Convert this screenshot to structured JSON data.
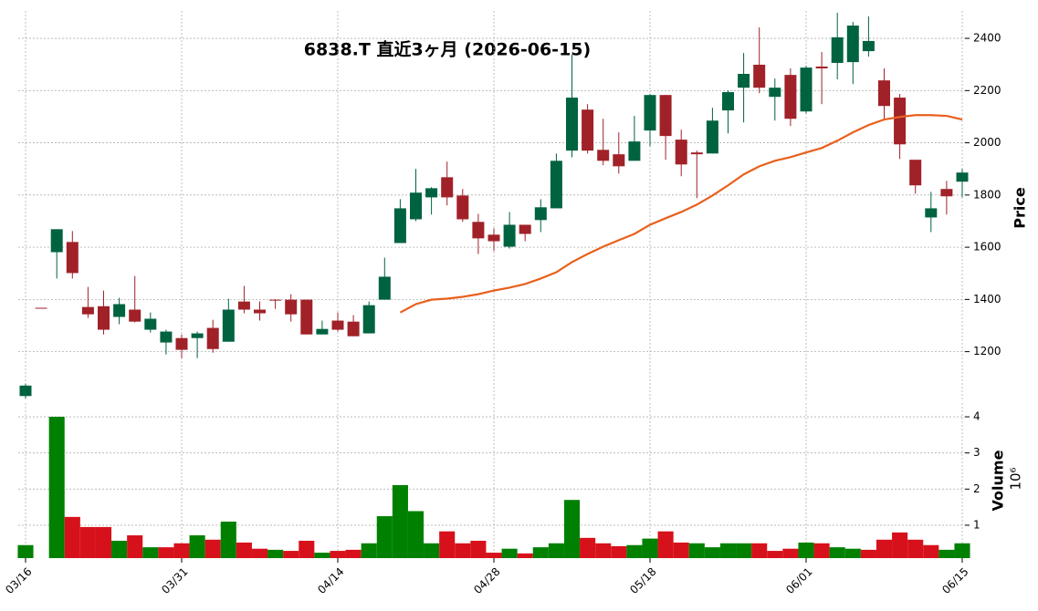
{
  "chart_data": [
    {
      "type": "candlestick",
      "title": "6838.T  直近3ヶ月  (2026-06-15)",
      "ylabel": "Price",
      "categories": [
        "03/16",
        null,
        null,
        null,
        null,
        null,
        null,
        null,
        null,
        null,
        "03/31",
        null,
        null,
        null,
        null,
        null,
        null,
        null,
        null,
        null,
        "04/14",
        null,
        null,
        null,
        null,
        null,
        null,
        null,
        null,
        null,
        "04/28",
        null,
        null,
        null,
        null,
        null,
        null,
        null,
        null,
        null,
        "05/18",
        null,
        null,
        null,
        null,
        null,
        null,
        null,
        null,
        null,
        "06/01",
        null,
        null,
        null,
        null,
        null,
        null,
        null,
        null,
        null,
        "06/15"
      ],
      "open": [
        1030,
        1368,
        1581,
        1620,
        1371,
        1374,
        1333,
        1361,
        1284,
        1235,
        1252,
        1252,
        1291,
        1238,
        1392,
        1361,
        1399,
        1399,
        1399,
        1266,
        1319,
        1315,
        1270,
        1399,
        1616,
        1707,
        1791,
        1868,
        1798,
        1697,
        1648,
        1602,
        1686,
        1704,
        1749,
        1970,
        2127,
        1973,
        1956,
        1931,
        2047,
        2183,
        2012,
        1963,
        1959,
        2124,
        2211,
        2299,
        2176,
        2260,
        2120,
        2292,
        2306,
        2309,
        2351,
        2239,
        2173,
        1935,
        1714,
        1823,
        1851
      ],
      "high": [
        1077,
        1368,
        1669,
        1662,
        1448,
        1434,
        1406,
        1490,
        1350,
        1284,
        1266,
        1277,
        1322,
        1403,
        1452,
        1392,
        1401,
        1420,
        1399,
        1319,
        1350,
        1340,
        1392,
        1560,
        1784,
        1900,
        1830,
        1928,
        1823,
        1728,
        1672,
        1735,
        1686,
        1784,
        1959,
        2337,
        2148,
        2092,
        2040,
        2103,
        2187,
        2183,
        2050,
        1970,
        2134,
        2201,
        2344,
        2442,
        2246,
        2285,
        2295,
        2348,
        2498,
        2463,
        2484,
        2285,
        2187,
        1935,
        1812,
        1854,
        1900
      ],
      "low": [
        1021,
        1367,
        1480,
        1480,
        1329,
        1266,
        1305,
        1312,
        1273,
        1189,
        1175,
        1175,
        1196,
        1238,
        1347,
        1319,
        1364,
        1315,
        1266,
        1266,
        1277,
        1259,
        1270,
        1399,
        1616,
        1700,
        1725,
        1760,
        1697,
        1574,
        1585,
        1595,
        1623,
        1658,
        1749,
        1945,
        1959,
        1914,
        1882,
        1931,
        1987,
        1935,
        1872,
        1788,
        1959,
        2036,
        2078,
        2190,
        2085,
        2064,
        2113,
        2148,
        2243,
        2225,
        2330,
        2089,
        1938,
        1805,
        1658,
        1725,
        1791
      ],
      "close": [
        1070,
        1367,
        1669,
        1501,
        1343,
        1284,
        1382,
        1315,
        1326,
        1277,
        1207,
        1270,
        1210,
        1361,
        1361,
        1347,
        1398,
        1343,
        1266,
        1287,
        1284,
        1259,
        1378,
        1487,
        1749,
        1809,
        1826,
        1791,
        1707,
        1634,
        1623,
        1686,
        1651,
        1753,
        1931,
        2173,
        1970,
        1931,
        1910,
        2005,
        2183,
        2026,
        1917,
        1956,
        2085,
        2194,
        2264,
        2211,
        2211,
        2092,
        2288,
        2285,
        2404,
        2449,
        2390,
        2141,
        1994,
        1837,
        1749,
        1795,
        1886
      ],
      "up_color": "#006340",
      "down_color": "#a02128",
      "moving_average": {
        "color": "#e8601c",
        "values": [
          null,
          null,
          null,
          null,
          null,
          null,
          null,
          null,
          null,
          null,
          null,
          null,
          null,
          null,
          null,
          null,
          null,
          null,
          null,
          null,
          null,
          null,
          null,
          null,
          1350,
          1382,
          1399,
          1403,
          1410,
          1420,
          1434,
          1445,
          1459,
          1480,
          1504,
          1543,
          1574,
          1602,
          1627,
          1651,
          1686,
          1711,
          1735,
          1763,
          1798,
          1837,
          1879,
          1910,
          1931,
          1945,
          1963,
          1980,
          2008,
          2040,
          2068,
          2089,
          2099,
          2106,
          2106,
          2103,
          2089
        ]
      },
      "ylim": [
        1010,
        2505
      ],
      "yticks": [
        1200,
        1400,
        1600,
        1800,
        2000,
        2200,
        2400
      ],
      "grid": true
    },
    {
      "type": "bar",
      "ylabel": "Volume",
      "multiplier": "10⁶",
      "values": [
        0.45,
        null,
        4.0,
        1.23,
        0.95,
        0.95,
        0.57,
        0.72,
        0.39,
        0.39,
        0.5,
        0.72,
        0.6,
        1.1,
        0.52,
        0.35,
        0.32,
        0.29,
        0.57,
        0.24,
        0.29,
        0.32,
        0.5,
        1.25,
        2.11,
        1.39,
        0.5,
        0.83,
        0.5,
        0.57,
        0.24,
        0.35,
        0.22,
        0.39,
        0.5,
        1.7,
        0.65,
        0.5,
        0.42,
        0.45,
        0.63,
        0.83,
        0.52,
        0.5,
        0.39,
        0.5,
        0.5,
        0.5,
        0.29,
        0.35,
        0.52,
        0.5,
        0.39,
        0.35,
        0.32,
        0.6,
        0.8,
        0.6,
        0.45,
        0.32,
        0.5
      ],
      "colors": [
        "#008000",
        null,
        "#008000",
        "#d7111b",
        "#d7111b",
        "#d7111b",
        "#008000",
        "#d7111b",
        "#008000",
        "#d7111b",
        "#d7111b",
        "#008000",
        "#d7111b",
        "#008000",
        "#d7111b",
        "#d7111b",
        "#008000",
        "#d7111b",
        "#d7111b",
        "#008000",
        "#d7111b",
        "#d7111b",
        "#008000",
        "#008000",
        "#008000",
        "#008000",
        "#008000",
        "#d7111b",
        "#d7111b",
        "#d7111b",
        "#d7111b",
        "#008000",
        "#d7111b",
        "#008000",
        "#008000",
        "#008000",
        "#d7111b",
        "#d7111b",
        "#d7111b",
        "#008000",
        "#008000",
        "#d7111b",
        "#d7111b",
        "#008000",
        "#008000",
        "#008000",
        "#008000",
        "#d7111b",
        "#d7111b",
        "#d7111b",
        "#008000",
        "#d7111b",
        "#008000",
        "#008000",
        "#d7111b",
        "#d7111b",
        "#d7111b",
        "#d7111b",
        "#d7111b",
        "#008000",
        "#008000"
      ],
      "ylim": [
        0.09,
        4.38
      ],
      "yticks": [
        1,
        2,
        3,
        4
      ],
      "grid": true
    }
  ]
}
